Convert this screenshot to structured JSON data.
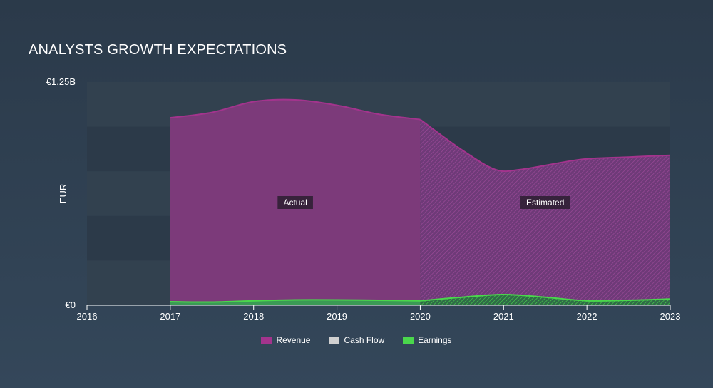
{
  "chart_data": {
    "type": "area",
    "title": "ANALYSTS GROWTH EXPECTATIONS",
    "ylabel": "EUR",
    "ylim": [
      0,
      1.25
    ],
    "y_ticks": [
      {
        "value": 1.25,
        "label": "€1.25B"
      },
      {
        "value": 0,
        "label": "€0"
      }
    ],
    "xlim": [
      2016,
      2023
    ],
    "x_ticks": [
      "2016",
      "2017",
      "2018",
      "2019",
      "2020",
      "2021",
      "2022",
      "2023"
    ],
    "actual_end": 2020,
    "region_labels": {
      "actual": "Actual",
      "estimated": "Estimated"
    },
    "series": [
      {
        "name": "Revenue",
        "color": "#a3348d",
        "x": [
          2017,
          2017.5,
          2018,
          2018.5,
          2019,
          2019.5,
          2020,
          2020.5,
          2020.9,
          2021.2,
          2021.7,
          2022,
          2022.5,
          2023
        ],
        "values": [
          1.05,
          1.08,
          1.14,
          1.15,
          1.12,
          1.07,
          1.04,
          0.87,
          0.76,
          0.76,
          0.8,
          0.82,
          0.83,
          0.84
        ]
      },
      {
        "name": "Cash Flow",
        "color": "#d0d0d0",
        "x": [],
        "values": []
      },
      {
        "name": "Earnings",
        "color": "#4ad74c",
        "x": [
          2017,
          2017.5,
          2018,
          2018.5,
          2019,
          2019.5,
          2020,
          2020.5,
          2021,
          2021.5,
          2022,
          2022.5,
          2023
        ],
        "values": [
          0.02,
          0.018,
          0.025,
          0.03,
          0.03,
          0.028,
          0.025,
          0.045,
          0.06,
          0.045,
          0.025,
          0.028,
          0.035
        ]
      }
    ],
    "legend_position": "bottom-center"
  }
}
